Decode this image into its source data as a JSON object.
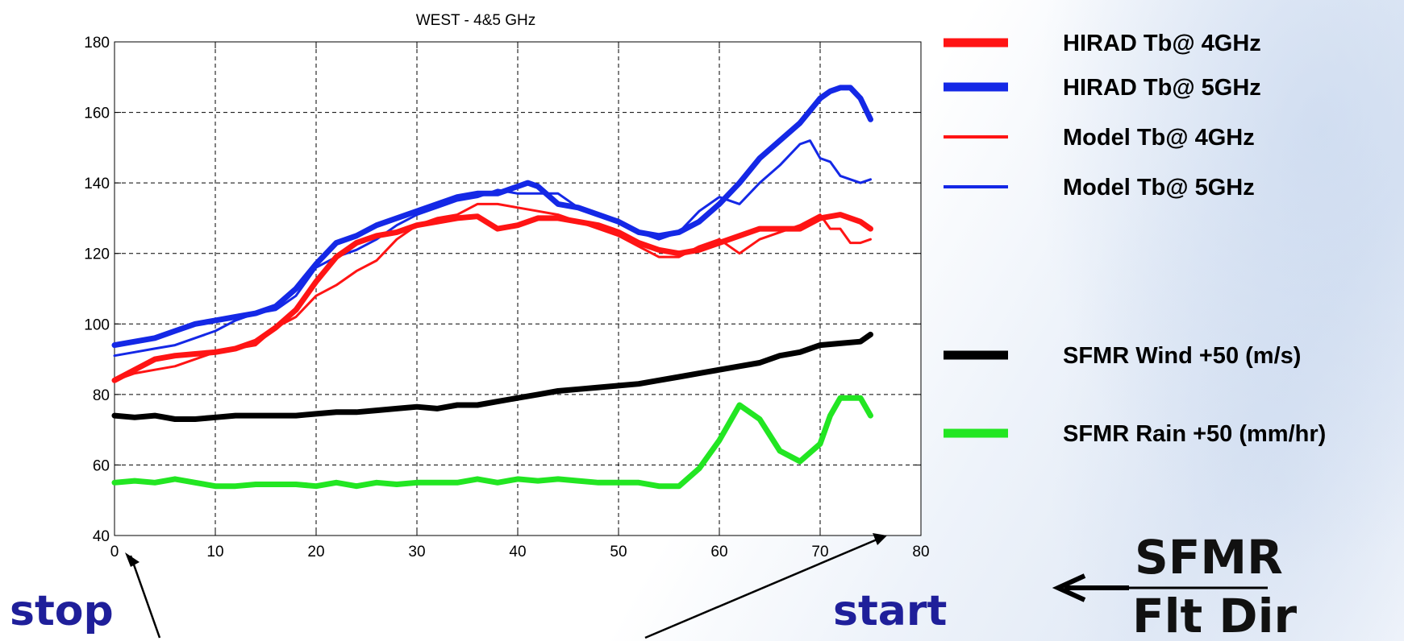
{
  "chart_data": {
    "type": "line",
    "title": "WEST - 4&5 GHz",
    "xlabel": "",
    "ylabel": "",
    "xlim": [
      0,
      80
    ],
    "ylim": [
      40,
      180
    ],
    "xticks": [
      "0",
      "10",
      "20",
      "30",
      "40",
      "50",
      "60",
      "70",
      "80"
    ],
    "yticks": [
      "40",
      "60",
      "80",
      "100",
      "120",
      "140",
      "160",
      "180"
    ],
    "grid": true,
    "legend_position": "right",
    "series": [
      {
        "name": "HIRAD Tb@ 4GHz",
        "color": "#ff1414",
        "style": "thick",
        "x": [
          0,
          2,
          4,
          6,
          8,
          10,
          12,
          14,
          16,
          18,
          20,
          22,
          24,
          26,
          28,
          30,
          32,
          34,
          36,
          38,
          40,
          42,
          44,
          46,
          48,
          50,
          52,
          54,
          56,
          58,
          60,
          62,
          64,
          66,
          68,
          70,
          72,
          74,
          75
        ],
        "y": [
          84,
          87,
          90,
          91,
          91.5,
          92,
          93,
          95,
          99,
          104,
          112,
          119,
          123,
          125,
          126,
          128,
          129,
          130,
          130.5,
          127,
          128,
          130,
          130,
          129,
          128,
          126,
          123,
          121,
          120,
          121,
          123,
          125,
          127,
          127,
          127,
          130,
          131,
          129,
          127
        ]
      },
      {
        "name": "HIRAD Tb@ 5GHz",
        "color": "#1428e6",
        "style": "thick",
        "x": [
          0,
          2,
          4,
          6,
          8,
          10,
          12,
          14,
          16,
          18,
          20,
          22,
          24,
          26,
          28,
          30,
          32,
          34,
          36,
          38,
          40,
          41,
          42,
          44,
          46,
          48,
          50,
          52,
          54,
          56,
          58,
          60,
          62,
          64,
          66,
          68,
          70,
          71,
          72,
          73,
          74,
          75
        ],
        "y": [
          94,
          95,
          96,
          98,
          100,
          101,
          102,
          103,
          105,
          110,
          117,
          123,
          125,
          128,
          130,
          132,
          134,
          136,
          137,
          137,
          139,
          140,
          139,
          134,
          133,
          131,
          129,
          126,
          125,
          126,
          129,
          134,
          140,
          147,
          152,
          157,
          164,
          166,
          167,
          167,
          164,
          158
        ]
      },
      {
        "name": "Model Tb@ 4GHz",
        "color": "#ff1414",
        "style": "thin",
        "x": [
          0,
          2,
          4,
          6,
          8,
          10,
          12,
          14,
          16,
          18,
          20,
          22,
          24,
          26,
          28,
          30,
          32,
          34,
          36,
          38,
          40,
          42,
          44,
          46,
          48,
          50,
          52,
          54,
          56,
          58,
          60,
          62,
          64,
          66,
          68,
          70,
          71,
          72,
          73,
          74,
          75
        ],
        "y": [
          84,
          86,
          87,
          88,
          90,
          92,
          93,
          94,
          99,
          102,
          108,
          111,
          115,
          118,
          124,
          128,
          130,
          131,
          134,
          134,
          133,
          132,
          131,
          129,
          127,
          125,
          122,
          119,
          119,
          122,
          124,
          120,
          124,
          126,
          128,
          131,
          127,
          127,
          123,
          123,
          124
        ]
      },
      {
        "name": "Model Tb@ 5GHz",
        "color": "#1428e6",
        "style": "thin",
        "x": [
          0,
          2,
          4,
          6,
          8,
          10,
          12,
          14,
          16,
          18,
          20,
          22,
          24,
          26,
          28,
          30,
          32,
          34,
          36,
          38,
          40,
          42,
          44,
          46,
          48,
          50,
          52,
          54,
          56,
          58,
          60,
          62,
          64,
          66,
          68,
          69,
          70,
          71,
          72,
          73,
          74,
          75
        ],
        "y": [
          91,
          92,
          93,
          94,
          96,
          98,
          101,
          103,
          104,
          108,
          116,
          119,
          121,
          124,
          128,
          131,
          133,
          135,
          136,
          138,
          137,
          137,
          137,
          133,
          131,
          129,
          126,
          124,
          126,
          132,
          136,
          134,
          140,
          145,
          151,
          152,
          147,
          146,
          142,
          141,
          140,
          141
        ]
      },
      {
        "name": "SFMR Wind +50 (m/s)",
        "color": "#000000",
        "style": "thick",
        "x": [
          0,
          2,
          4,
          6,
          8,
          10,
          12,
          14,
          16,
          18,
          20,
          22,
          24,
          26,
          28,
          30,
          32,
          34,
          36,
          38,
          40,
          42,
          44,
          46,
          48,
          50,
          52,
          54,
          56,
          58,
          60,
          62,
          64,
          66,
          68,
          70,
          72,
          74,
          75
        ],
        "y": [
          74,
          73.5,
          74,
          73,
          73,
          73.5,
          74,
          74,
          74,
          74,
          74.5,
          75,
          75,
          75.5,
          76,
          76.5,
          76,
          77,
          77,
          78,
          79,
          80,
          81,
          81.5,
          82,
          82.5,
          83,
          84,
          85,
          86,
          87,
          88,
          89,
          91,
          92,
          94,
          94.5,
          95,
          97
        ]
      },
      {
        "name": "SFMR Rain +50 (mm/hr)",
        "color": "#22e622",
        "style": "thick",
        "x": [
          0,
          2,
          4,
          6,
          8,
          10,
          12,
          14,
          16,
          18,
          20,
          22,
          24,
          26,
          28,
          30,
          32,
          34,
          36,
          38,
          40,
          42,
          44,
          46,
          48,
          50,
          52,
          54,
          56,
          58,
          60,
          62,
          64,
          66,
          68,
          70,
          71,
          72,
          74,
          75
        ],
        "y": [
          55,
          55.5,
          55,
          56,
          55,
          54,
          54,
          54.5,
          54.5,
          54.5,
          54,
          55,
          54,
          55,
          54.5,
          55,
          55,
          55,
          56,
          55,
          56,
          55.5,
          56,
          55.5,
          55,
          55,
          55,
          54,
          54,
          59,
          67,
          77,
          73,
          64,
          61,
          66,
          74,
          79,
          79,
          74
        ]
      }
    ]
  },
  "annotations": {
    "stop": "stop",
    "start": "start",
    "sfmr": "SFMR",
    "flt_dir": "Flt Dir"
  }
}
